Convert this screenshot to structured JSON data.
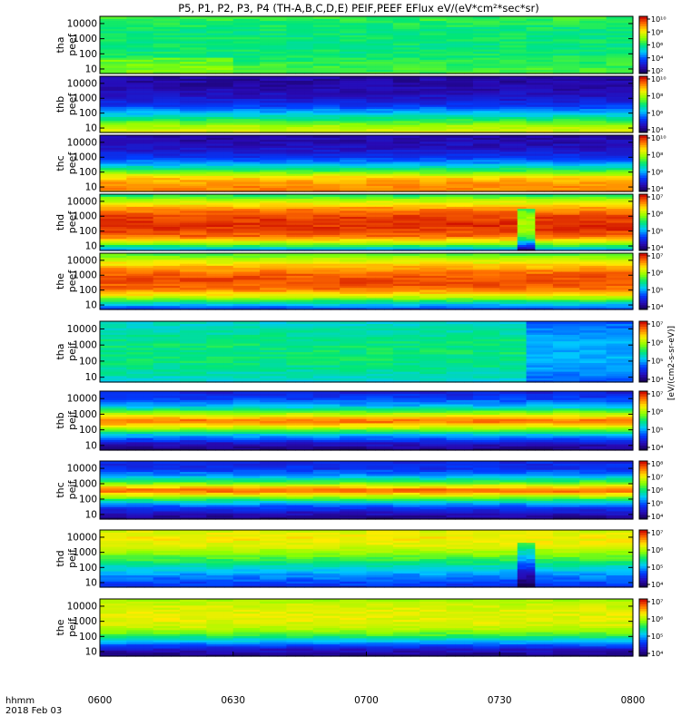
{
  "title": "P5, P1, P2, P3, P4 (TH-A,B,C,D,E) PEIF,PEEF EFlux eV/(eV*cm²*sec*sr)",
  "colorbar_unit_label": "[eV/(cm2-s-sr-eV)]",
  "footer": {
    "time_format": "hhmm",
    "date": "2018 Feb 03"
  },
  "chart_data": {
    "type": "heatmap",
    "xlabel": "",
    "x_ticks": [
      "0600",
      "0630",
      "0700",
      "0730",
      "0800"
    ],
    "xlim": [
      "06:00",
      "08:00"
    ],
    "y_scale": "log",
    "y_ticks": [
      "10",
      "100",
      "1000",
      "10000"
    ],
    "ylim": [
      5,
      30000
    ],
    "colormap": "rainbow",
    "panels": [
      {
        "id": "tha_peef",
        "label_top": "tha",
        "label_bottom": "peef",
        "cbar_ticks": [
          "10²",
          "10⁴",
          "10⁶",
          "10⁸",
          "10¹⁰"
        ],
        "base": [
          0.55,
          0.55,
          0.52,
          0.5,
          0.5,
          0.5,
          0.5,
          0.52,
          0.55
        ],
        "features": [
          {
            "t": [
              0.0,
              0.25
            ],
            "e": [
              0.0,
              0.3
            ],
            "dv": 0.06
          }
        ]
      },
      {
        "id": "thb_peef",
        "label_top": "thb",
        "label_bottom": "peef",
        "cbar_ticks": [
          "10⁴",
          "10⁶",
          "10⁸",
          "10¹⁰"
        ],
        "base": [
          0.72,
          0.65,
          0.5,
          0.35,
          0.22,
          0.15,
          0.12,
          0.1,
          0.1
        ],
        "features": []
      },
      {
        "id": "thc_peef",
        "label_top": "thc",
        "label_bottom": "peef",
        "cbar_ticks": [
          "10⁴",
          "10⁶",
          "10⁸",
          "10¹⁰"
        ],
        "base": [
          0.85,
          0.85,
          0.78,
          0.55,
          0.35,
          0.22,
          0.15,
          0.12,
          0.1
        ],
        "features": []
      },
      {
        "id": "thd_peef",
        "label_top": "thd",
        "label_bottom": "peef",
        "cbar_ticks": [
          "10⁴",
          "10⁵",
          "10⁶",
          "10⁷"
        ],
        "base": [
          0.3,
          0.62,
          0.88,
          0.94,
          0.95,
          0.92,
          0.85,
          0.7,
          0.5
        ],
        "features": [
          {
            "t": [
              0.79,
              0.82
            ],
            "e": [
              0.0,
              0.75
            ],
            "dv": -0.3
          }
        ]
      },
      {
        "id": "the_peef",
        "label_top": "the",
        "label_bottom": "peef",
        "cbar_ticks": [
          "10⁴",
          "10⁵",
          "10⁶",
          "10⁷"
        ],
        "base": [
          0.2,
          0.45,
          0.72,
          0.88,
          0.92,
          0.9,
          0.82,
          0.7,
          0.55
        ],
        "features": []
      },
      {
        "id": "tha_peif",
        "label_top": "tha",
        "label_bottom": "peif",
        "cbar_ticks": [
          "10⁴",
          "10⁵",
          "10⁶",
          "10⁷"
        ],
        "base": [
          0.4,
          0.45,
          0.48,
          0.5,
          0.5,
          0.5,
          0.48,
          0.45,
          0.42
        ],
        "features": [
          {
            "t": [
              0.8,
              1.0
            ],
            "e": [
              0.0,
              1.0
            ],
            "dv": -0.14
          }
        ]
      },
      {
        "id": "thb_peif",
        "label_top": "thb",
        "label_bottom": "peif",
        "cbar_ticks": [
          "10⁴",
          "10⁵",
          "10⁶",
          "10⁷"
        ],
        "base": [
          0.05,
          0.15,
          0.35,
          0.65,
          0.9,
          0.65,
          0.38,
          0.25,
          0.18
        ],
        "features": []
      },
      {
        "id": "thc_peif",
        "label_top": "thc",
        "label_bottom": "peif",
        "cbar_ticks": [
          "10⁴",
          "10⁵",
          "10⁶",
          "10⁷",
          "10⁸"
        ],
        "base": [
          0.05,
          0.15,
          0.3,
          0.6,
          0.92,
          0.6,
          0.35,
          0.22,
          0.2
        ],
        "features": []
      },
      {
        "id": "thd_peif",
        "label_top": "thd",
        "label_bottom": "peif",
        "cbar_ticks": [
          "10⁴",
          "10⁵",
          "10⁶",
          "10⁷"
        ],
        "base": [
          0.2,
          0.28,
          0.35,
          0.45,
          0.55,
          0.65,
          0.72,
          0.75,
          0.7
        ],
        "features": [
          {
            "t": [
              0.78,
              0.81
            ],
            "e": [
              0.0,
              0.8
            ],
            "dv": -0.2
          }
        ]
      },
      {
        "id": "the_peif",
        "label_top": "the",
        "label_bottom": "peif",
        "cbar_ticks": [
          "10⁴",
          "10⁵",
          "10⁶",
          "10⁷"
        ],
        "base": [
          0.05,
          0.15,
          0.35,
          0.55,
          0.68,
          0.72,
          0.72,
          0.7,
          0.65
        ],
        "features": []
      }
    ]
  }
}
